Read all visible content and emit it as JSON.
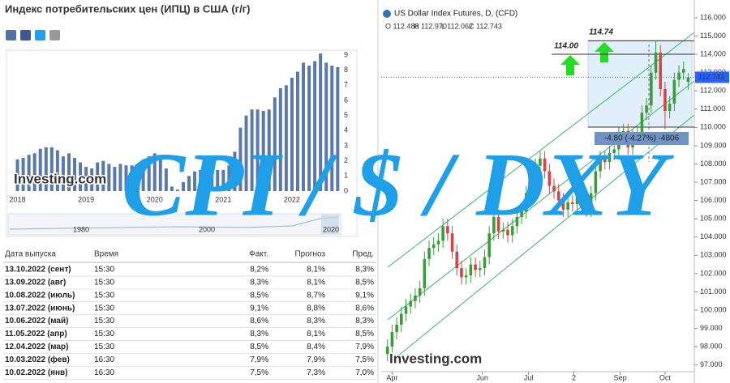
{
  "chart_data": [
    {
      "type": "bar",
      "title": "Индекс потребительских цен (ИПЦ) в США (г/г)",
      "categories": [
        "2018",
        null,
        null,
        null,
        null,
        null,
        null,
        null,
        null,
        null,
        null,
        null,
        "2019",
        null,
        null,
        null,
        null,
        null,
        null,
        null,
        null,
        null,
        null,
        null,
        "2020",
        null,
        null,
        null,
        null,
        null,
        null,
        null,
        null,
        null,
        null,
        null,
        "2021",
        null,
        null,
        null,
        null,
        null,
        null,
        null,
        null,
        null,
        null,
        null,
        "2022",
        null,
        null,
        null,
        null,
        null,
        null,
        null,
        null
      ],
      "values": [
        2.1,
        2.2,
        2.4,
        2.5,
        2.8,
        2.9,
        2.9,
        2.7,
        2.3,
        2.5,
        2.2,
        1.9,
        1.6,
        1.5,
        1.9,
        2.0,
        1.8,
        1.6,
        1.8,
        1.7,
        1.7,
        1.8,
        2.1,
        2.3,
        2.5,
        2.3,
        1.5,
        0.3,
        0.1,
        0.6,
        1.0,
        1.3,
        1.4,
        1.2,
        1.2,
        1.4,
        1.4,
        1.7,
        2.6,
        4.2,
        5.0,
        5.4,
        5.4,
        5.3,
        5.4,
        6.2,
        6.8,
        7.0,
        7.5,
        7.9,
        8.5,
        8.3,
        8.6,
        9.1,
        8.5,
        8.3,
        8.2
      ],
      "color": "#5b79a8",
      "ylim": [
        0,
        9.3
      ],
      "yticks": [
        0,
        1,
        2,
        3,
        4,
        5,
        6,
        7,
        8,
        9
      ],
      "watermark": "Investing.com",
      "navigator_labels": [
        "1980",
        "2000",
        "2020"
      ]
    },
    {
      "type": "candlestick",
      "title": "US Dollar Index Futures, D, (CFD)",
      "ohlc_legend": [
        "O 112.488",
        "H 112.970",
        "L 112.062",
        "C 112.743"
      ],
      "open": [
        97.6,
        98.0,
        98.8,
        99.2,
        99.8,
        100.2,
        100.5,
        100.8,
        101.2,
        102.8,
        103.4,
        103.6,
        103.8,
        104.6,
        104.2,
        103.2,
        102.3,
        101.8,
        101.9,
        102.5,
        102.2,
        102.3,
        102.9,
        104.2,
        105.1,
        104.3,
        104.4,
        104.1,
        104.6,
        105.1,
        105.4,
        106.4,
        107.0,
        107.9,
        108.3,
        107.6,
        106.8,
        106.5,
        106.0,
        105.5,
        105.9,
        105.8,
        106.4,
        106.1,
        105.5,
        106.4,
        107.6,
        108.3,
        108.1,
        108.6,
        108.8,
        109.6,
        109.8,
        108.9,
        109.5,
        109.7,
        110.8,
        111.2,
        113.0,
        114.1,
        112.1,
        110.9,
        111.3,
        112.6,
        113.0,
        112.488
      ],
      "high": [
        98.4,
        99.2,
        99.6,
        100.2,
        100.6,
        100.9,
        101.2,
        101.6,
        103.2,
        103.8,
        104.0,
        104.2,
        105.0,
        105.0,
        104.6,
        103.6,
        102.7,
        102.3,
        102.9,
        102.9,
        102.7,
        103.3,
        104.6,
        105.5,
        105.5,
        104.8,
        104.8,
        105.0,
        105.5,
        105.8,
        106.8,
        107.4,
        108.3,
        108.7,
        108.7,
        108.0,
        107.2,
        106.9,
        106.4,
        106.3,
        106.3,
        106.8,
        106.8,
        106.5,
        106.8,
        108.0,
        108.7,
        108.7,
        109.0,
        109.2,
        110.0,
        110.2,
        110.2,
        109.9,
        110.1,
        111.2,
        111.6,
        113.4,
        114.74,
        114.5,
        112.5,
        111.7,
        113.0,
        113.4,
        113.6,
        112.97
      ],
      "low": [
        97.2,
        97.6,
        98.4,
        98.8,
        99.4,
        99.8,
        100.1,
        100.4,
        100.8,
        102.4,
        103.0,
        103.2,
        103.4,
        103.8,
        102.8,
        101.9,
        101.4,
        101.4,
        101.5,
        101.8,
        101.8,
        101.9,
        102.5,
        103.8,
        103.9,
        103.9,
        103.7,
        103.7,
        104.2,
        104.7,
        105.0,
        106.0,
        106.6,
        107.5,
        107.2,
        106.4,
        106.1,
        105.6,
        105.1,
        105.1,
        105.4,
        105.4,
        105.7,
        105.1,
        105.1,
        106.0,
        107.2,
        107.7,
        107.7,
        108.2,
        108.4,
        109.2,
        108.5,
        108.5,
        109.1,
        109.3,
        110.4,
        110.8,
        112.6,
        111.7,
        109.9,
        110.5,
        110.9,
        112.2,
        112.6,
        112.062
      ],
      "close": [
        98.0,
        98.8,
        99.2,
        99.8,
        100.2,
        100.5,
        100.8,
        101.2,
        102.8,
        103.4,
        103.6,
        103.8,
        104.6,
        104.2,
        103.2,
        102.3,
        101.8,
        101.9,
        102.5,
        102.2,
        102.3,
        102.9,
        104.2,
        105.1,
        104.3,
        104.4,
        104.1,
        104.6,
        105.1,
        105.4,
        106.4,
        107.0,
        107.9,
        108.3,
        107.6,
        106.8,
        106.5,
        106.0,
        105.5,
        105.9,
        105.8,
        106.4,
        106.1,
        105.5,
        106.4,
        107.6,
        108.3,
        108.1,
        108.6,
        108.8,
        109.6,
        109.8,
        108.9,
        109.5,
        109.7,
        110.8,
        111.2,
        113.0,
        114.1,
        112.1,
        110.9,
        111.3,
        112.6,
        113.0,
        113.2,
        112.743
      ],
      "up_color": "#3c9c3c",
      "down_color": "#d64545",
      "xlim": [
        -1,
        66.5
      ],
      "xticks": [
        {
          "value": 1,
          "label": "Apr"
        },
        {
          "value": 20.5,
          "label": "Jun"
        },
        {
          "value": 30.5,
          "label": "Jul"
        },
        {
          "value": 40.3,
          "label": "2"
        },
        {
          "value": 50.3,
          "label": "Sep"
        },
        {
          "value": 60,
          "label": "Oct"
        }
      ],
      "ylim": [
        96.5,
        116.75
      ],
      "yticks": [
        {
          "value": 97,
          "label": "97.000"
        },
        {
          "value": 98,
          "label": "98.000"
        },
        {
          "value": 99,
          "label": "99.000"
        },
        {
          "value": 100,
          "label": "100.000"
        },
        {
          "value": 101,
          "label": "101.000"
        },
        {
          "value": 102,
          "label": "102.000"
        },
        {
          "value": 103,
          "label": "103.000"
        },
        {
          "value": 104,
          "label": "104.000"
        },
        {
          "value": 105,
          "label": "105.000"
        },
        {
          "value": 106,
          "label": "106.000"
        },
        {
          "value": 107,
          "label": "107.000"
        },
        {
          "value": 108,
          "label": "108.000"
        },
        {
          "value": 109,
          "label": "109.000"
        },
        {
          "value": 110,
          "label": "110.000"
        },
        {
          "value": 111,
          "label": "111.000"
        },
        {
          "value": 112,
          "label": "112.000"
        },
        {
          "value": 113,
          "label": "113.000"
        },
        {
          "value": 114,
          "label": "114.000"
        },
        {
          "value": 115,
          "label": "115.000"
        },
        {
          "value": 116,
          "label": "116.000"
        }
      ],
      "annotations": [
        114.74,
        {
          "value": 114,
          "label": "114.00"
        }
      ],
      "range_label": "-4.80 (-4.27%) -4806",
      "watermark": "Investing.com"
    }
  ],
  "table": {
    "headers": [
      "Дата выпуска",
      "Время",
      "Факт.",
      "Прогноз",
      "Пред."
    ],
    "rows": [
      [
        "13.10.2022 (сент)",
        "15:30",
        "8,2%",
        "8,1%",
        "8,3%"
      ],
      [
        "13.09.2022 (авг)",
        "15:30",
        "8,3%",
        "8,1%",
        "8,5%"
      ],
      [
        "10.08.2022 (июль)",
        "15:30",
        "8,5%",
        "8,7%",
        "9,1%"
      ],
      [
        "13.07.2022 (июнь)",
        "15:30",
        "9,1%",
        "8,8%",
        "8,6%"
      ],
      [
        "10.06.2022 (май)",
        "15:30",
        "8,6%",
        "8,3%",
        "8,3%"
      ],
      [
        "11.05.2022 (апр)",
        "15:30",
        "8,3%",
        "8,1%",
        "8,5%"
      ],
      [
        "12.04.2022 (мар)",
        "15:30",
        "8,5%",
        "8,4%",
        "7,9%"
      ],
      [
        "10.03.2022 (фев)",
        "16:30",
        "7,9%",
        "7,9%",
        "7,5%"
      ],
      [
        "10.02.2022 (янв)",
        "16:30",
        "7,5%",
        "7,3%",
        "7,0%"
      ]
    ],
    "fact_colors": [
      "#2e9e2e",
      "#2e9e2e",
      "#d62020",
      "#2e9e2e",
      "#2e9e2e",
      "#2e9e2e",
      "#2e9e2e",
      "#222222",
      "#2e9e2e"
    ]
  },
  "overlay_text": "CPI / $ / DXY"
}
